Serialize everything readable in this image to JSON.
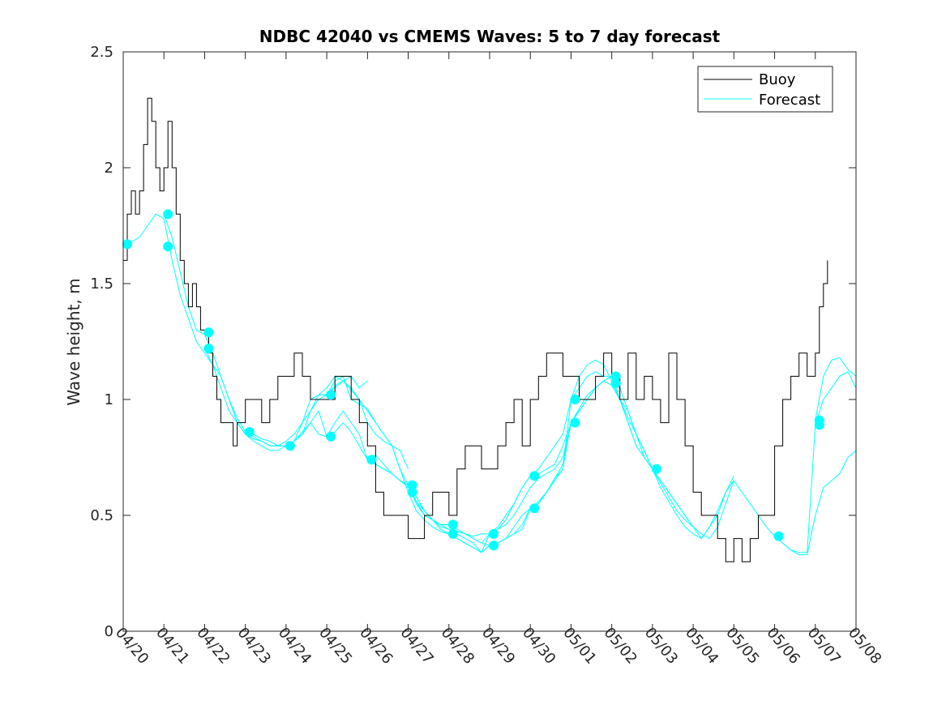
{
  "chart_data": {
    "type": "line",
    "title": "NDBC 42040 vs CMEMS Waves: 5 to 7 day forecast",
    "ylabel": "Wave height, m",
    "xlabel": "",
    "x_tick_labels": [
      "04/20",
      "04/21",
      "04/22",
      "04/23",
      "04/24",
      "04/25",
      "04/26",
      "04/27",
      "04/28",
      "04/29",
      "04/30",
      "05/01",
      "05/02",
      "05/03",
      "05/04",
      "05/05",
      "05/06",
      "05/07",
      "05/08"
    ],
    "xlim": [
      0,
      18
    ],
    "ylim": [
      0,
      2.5
    ],
    "y_ticks": [
      0,
      0.5,
      1,
      1.5,
      2,
      2.5
    ],
    "y_tick_labels": [
      "0",
      "0.5",
      "1",
      "1.5",
      "2",
      "2.5"
    ],
    "grid": false,
    "legend_position": "top-right",
    "legend": [
      "Buoy",
      "Forecast"
    ],
    "colors": {
      "buoy": "#000000",
      "forecast": "#00ffff"
    },
    "buoy_series": {
      "name": "Buoy",
      "x": [
        0,
        0.1,
        0.2,
        0.3,
        0.4,
        0.5,
        0.6,
        0.7,
        0.8,
        0.9,
        1.0,
        1.1,
        1.2,
        1.3,
        1.4,
        1.5,
        1.6,
        1.7,
        1.8,
        1.9,
        2.0,
        2.1,
        2.2,
        2.3,
        2.4,
        2.5,
        2.6,
        2.7,
        2.8,
        2.9,
        3.0,
        3.2,
        3.4,
        3.6,
        3.8,
        4.0,
        4.2,
        4.4,
        4.6,
        4.8,
        5.0,
        5.2,
        5.4,
        5.6,
        5.8,
        6.0,
        6.2,
        6.4,
        6.6,
        6.8,
        7.0,
        7.2,
        7.4,
        7.6,
        7.8,
        8.0,
        8.2,
        8.4,
        8.6,
        8.8,
        9.0,
        9.2,
        9.4,
        9.6,
        9.8,
        10.0,
        10.2,
        10.4,
        10.6,
        10.8,
        11.0,
        11.2,
        11.4,
        11.6,
        11.8,
        12.0,
        12.2,
        12.4,
        12.6,
        12.8,
        13.0,
        13.2,
        13.4,
        13.6,
        13.8,
        14.0,
        14.2,
        14.4,
        14.6,
        14.8,
        15.0,
        15.2,
        15.4,
        15.6,
        15.8,
        16.0,
        16.2,
        16.4,
        16.6,
        16.8,
        17.0,
        17.1,
        17.2,
        17.3
      ],
      "y": [
        1.6,
        1.8,
        1.9,
        1.8,
        1.9,
        2.1,
        2.3,
        2.2,
        2.0,
        1.9,
        2.0,
        2.2,
        2.0,
        1.8,
        1.6,
        1.5,
        1.4,
        1.5,
        1.4,
        1.3,
        1.3,
        1.2,
        1.1,
        1.0,
        0.9,
        0.9,
        0.9,
        0.8,
        0.9,
        0.9,
        1.0,
        1.0,
        0.9,
        1.0,
        1.1,
        1.1,
        1.2,
        1.1,
        1.0,
        1.0,
        1.0,
        1.1,
        1.1,
        1.0,
        0.9,
        0.8,
        0.6,
        0.5,
        0.5,
        0.5,
        0.4,
        0.4,
        0.5,
        0.6,
        0.6,
        0.5,
        0.7,
        0.8,
        0.8,
        0.7,
        0.7,
        0.8,
        0.9,
        1.0,
        0.8,
        1.0,
        1.1,
        1.2,
        1.2,
        1.1,
        1.1,
        1.0,
        1.0,
        1.1,
        1.2,
        1.1,
        1.0,
        1.2,
        1.0,
        1.1,
        1.0,
        0.9,
        1.2,
        1.0,
        0.8,
        0.6,
        0.5,
        0.5,
        0.4,
        0.3,
        0.4,
        0.3,
        0.4,
        0.5,
        0.5,
        0.8,
        1.0,
        1.1,
        1.2,
        1.1,
        1.2,
        1.4,
        1.5,
        1.6
      ]
    },
    "forecast_series": [
      {
        "name": "Forecast",
        "x": [
          0,
          0.2,
          0.4,
          0.6,
          0.8,
          1.0,
          1.2,
          1.4,
          1.6,
          1.8,
          2.0,
          2.2,
          2.4,
          2.6,
          2.8,
          3.0,
          3.2,
          3.4,
          3.6,
          3.8,
          4.0,
          4.2,
          4.4,
          4.6,
          4.8,
          5.0,
          5.2,
          5.4,
          5.6,
          5.8,
          6.0
        ],
        "y": [
          1.67,
          1.68,
          1.7,
          1.75,
          1.8,
          1.78,
          1.6,
          1.45,
          1.35,
          1.25,
          1.2,
          1.15,
          1.1,
          1.0,
          0.9,
          0.85,
          0.83,
          0.82,
          0.8,
          0.8,
          0.82,
          0.85,
          0.9,
          0.95,
          1.0,
          1.02,
          1.05,
          1.08,
          1.1,
          1.05,
          1.08
        ]
      },
      {
        "name": "Forecast",
        "x": [
          1.0,
          1.2,
          1.4,
          1.6,
          1.8,
          2.0,
          2.2,
          2.4,
          2.6,
          2.8,
          3.0,
          3.2,
          3.4,
          3.6,
          3.8,
          4.0,
          4.2,
          4.4,
          4.6,
          4.8,
          5.0,
          5.2,
          5.4,
          5.6,
          5.8,
          6.0,
          6.2,
          6.4,
          6.6,
          6.8,
          7.0
        ],
        "y": [
          1.8,
          1.7,
          1.55,
          1.4,
          1.3,
          1.28,
          1.2,
          1.1,
          1.0,
          0.92,
          0.86,
          0.85,
          0.83,
          0.82,
          0.8,
          0.8,
          0.82,
          0.85,
          0.95,
          1.02,
          1.05,
          1.1,
          1.08,
          1.04,
          1.0,
          0.9,
          0.85,
          0.82,
          0.8,
          0.78,
          0.7
        ]
      },
      {
        "name": "Forecast",
        "x": [
          2.0,
          2.2,
          2.4,
          2.6,
          2.8,
          3.0,
          3.2,
          3.4,
          3.6,
          3.8,
          4.0,
          4.2,
          4.4,
          4.6,
          4.8,
          5.0,
          5.2,
          5.4,
          5.6,
          5.8,
          6.0,
          6.2,
          6.4,
          6.6,
          6.8,
          7.0,
          7.2,
          7.4,
          7.6,
          7.8,
          8.0
        ],
        "y": [
          1.22,
          1.15,
          1.05,
          0.95,
          0.9,
          0.85,
          0.82,
          0.8,
          0.78,
          0.78,
          0.8,
          0.82,
          0.86,
          0.9,
          0.95,
          0.84,
          0.9,
          0.95,
          0.9,
          0.85,
          0.74,
          0.76,
          0.72,
          0.68,
          0.65,
          0.62,
          0.56,
          0.52,
          0.48,
          0.44,
          0.42
        ]
      },
      {
        "name": "Forecast",
        "x": [
          3.0,
          3.2,
          3.4,
          3.6,
          3.8,
          4.0,
          4.2,
          4.4,
          4.6,
          4.8,
          5.0,
          5.2,
          5.4,
          5.6,
          5.8,
          6.0,
          6.2,
          6.4,
          6.6,
          6.8,
          7.0,
          7.2,
          7.4,
          7.6,
          7.8,
          8.0,
          8.2,
          8.4,
          8.6,
          8.8,
          9.0
        ],
        "y": [
          0.86,
          0.84,
          0.82,
          0.8,
          0.8,
          0.8,
          0.82,
          0.85,
          0.9,
          0.85,
          0.84,
          0.86,
          0.9,
          0.86,
          0.8,
          0.74,
          0.72,
          0.7,
          0.68,
          0.65,
          0.63,
          0.58,
          0.52,
          0.48,
          0.46,
          0.44,
          0.43,
          0.42,
          0.41,
          0.42,
          0.42
        ]
      },
      {
        "name": "Forecast",
        "x": [
          4.0,
          4.2,
          4.4,
          4.6,
          4.8,
          5.0,
          5.2,
          5.4,
          5.6,
          5.8,
          6.0,
          6.2,
          6.4,
          6.6,
          6.8,
          7.0,
          7.2,
          7.4,
          7.6,
          7.8,
          8.0,
          8.2,
          8.4,
          8.6,
          8.8,
          9.0,
          9.2,
          9.4,
          9.6,
          9.8,
          10.0
        ],
        "y": [
          0.8,
          0.82,
          0.9,
          1.0,
          1.02,
          1.02,
          1.08,
          1.1,
          1.0,
          0.98,
          0.96,
          0.9,
          0.85,
          0.8,
          0.7,
          0.63,
          0.58,
          0.52,
          0.48,
          0.46,
          0.46,
          0.44,
          0.42,
          0.4,
          0.38,
          0.37,
          0.38,
          0.4,
          0.45,
          0.5,
          0.53
        ]
      },
      {
        "name": "Forecast",
        "x": [
          5.0,
          5.2,
          5.4,
          5.6,
          5.8,
          6.0,
          6.2,
          6.4,
          6.6,
          6.8,
          7.0,
          7.2,
          7.4,
          7.6,
          7.8,
          8.0,
          8.2,
          8.4,
          8.6,
          8.8,
          9.0,
          9.2,
          9.4,
          9.6,
          9.8,
          10.0,
          10.2,
          10.4,
          10.6,
          10.8,
          11.0
        ],
        "y": [
          1.02,
          1.06,
          1.08,
          1.05,
          1.0,
          0.95,
          0.9,
          0.85,
          0.8,
          0.7,
          0.6,
          0.52,
          0.48,
          0.45,
          0.43,
          0.42,
          0.4,
          0.38,
          0.36,
          0.34,
          0.42,
          0.44,
          0.46,
          0.5,
          0.56,
          0.62,
          0.66,
          0.68,
          0.7,
          0.75,
          0.9
        ]
      },
      {
        "name": "Forecast",
        "x": [
          6.0,
          6.2,
          6.4,
          6.6,
          6.8,
          7.0,
          7.2,
          7.4,
          7.6,
          7.8,
          8.0,
          8.2,
          8.4,
          8.6,
          8.8,
          9.0,
          9.2,
          9.4,
          9.6,
          9.8,
          10.0,
          10.2,
          10.4,
          10.6,
          10.8,
          11.0,
          11.2,
          11.4,
          11.6,
          11.8,
          12.0
        ],
        "y": [
          0.74,
          0.72,
          0.7,
          0.68,
          0.65,
          0.63,
          0.55,
          0.5,
          0.48,
          0.45,
          0.44,
          0.42,
          0.4,
          0.38,
          0.34,
          0.37,
          0.38,
          0.4,
          0.42,
          0.46,
          0.53,
          0.55,
          0.6,
          0.66,
          0.7,
          1.0,
          1.05,
          1.1,
          1.12,
          1.1,
          1.1
        ]
      },
      {
        "name": "Forecast",
        "x": [
          7.0,
          7.2,
          7.4,
          7.6,
          7.8,
          8.0,
          8.2,
          8.4,
          8.6,
          8.8,
          9.0,
          9.2,
          9.4,
          9.6,
          9.8,
          10.0,
          10.2,
          10.4,
          10.6,
          10.8,
          11.0,
          11.2,
          11.4,
          11.6,
          11.8,
          12.0,
          12.2,
          12.4,
          12.6,
          12.8,
          13.0
        ],
        "y": [
          0.63,
          0.56,
          0.5,
          0.48,
          0.46,
          0.46,
          0.44,
          0.42,
          0.4,
          0.38,
          0.42,
          0.44,
          0.48,
          0.55,
          0.62,
          0.67,
          0.68,
          0.7,
          0.72,
          0.8,
          0.9,
          0.95,
          1.0,
          1.05,
          1.08,
          1.06,
          1.0,
          0.95,
          0.85,
          0.75,
          0.7
        ]
      },
      {
        "name": "Forecast",
        "x": [
          8.0,
          8.2,
          8.4,
          8.6,
          8.8,
          9.0,
          9.2,
          9.4,
          9.6,
          9.8,
          10.0,
          10.2,
          10.4,
          10.6,
          10.8,
          11.0,
          11.2,
          11.4,
          11.6,
          11.8,
          12.0,
          12.2,
          12.4,
          12.6,
          12.8,
          13.0,
          13.2,
          13.4,
          13.6,
          13.8,
          14.0
        ],
        "y": [
          0.42,
          0.4,
          0.38,
          0.36,
          0.34,
          0.37,
          0.38,
          0.4,
          0.42,
          0.44,
          0.53,
          0.56,
          0.6,
          0.66,
          0.72,
          0.9,
          0.96,
          1.02,
          1.05,
          1.08,
          1.1,
          1.0,
          0.9,
          0.8,
          0.75,
          0.7,
          0.65,
          0.6,
          0.55,
          0.5,
          0.45
        ]
      },
      {
        "name": "Forecast",
        "x": [
          9.0,
          9.2,
          9.4,
          9.6,
          9.8,
          10.0,
          10.2,
          10.4,
          10.6,
          10.8,
          11.0,
          11.2,
          11.4,
          11.6,
          11.8,
          12.0,
          12.2,
          12.4,
          12.6,
          12.8,
          13.0,
          13.2,
          13.4,
          13.6,
          13.8,
          14.0,
          14.2,
          14.4,
          14.6,
          14.8,
          15.0
        ],
        "y": [
          0.42,
          0.45,
          0.5,
          0.55,
          0.62,
          0.67,
          0.7,
          0.75,
          0.8,
          0.85,
          1.0,
          1.1,
          1.15,
          1.17,
          1.15,
          1.08,
          1.0,
          0.9,
          0.8,
          0.75,
          0.7,
          0.65,
          0.6,
          0.55,
          0.5,
          0.45,
          0.4,
          0.45,
          0.5,
          0.6,
          0.67
        ]
      },
      {
        "name": "Forecast",
        "x": [
          10.0,
          10.2,
          10.4,
          10.6,
          10.8,
          11.0,
          11.2,
          11.4,
          11.6,
          11.8,
          12.0,
          12.2,
          12.4,
          12.6,
          12.8,
          13.0,
          13.2,
          13.4,
          13.6,
          13.8,
          14.0,
          14.2,
          14.4,
          14.6,
          14.8,
          15.0
        ],
        "y": [
          0.53,
          0.55,
          0.6,
          0.65,
          0.7,
          0.9,
          0.95,
          1.0,
          1.05,
          1.08,
          1.1,
          1.05,
          0.95,
          0.85,
          0.78,
          0.7,
          0.64,
          0.58,
          0.52,
          0.48,
          0.45,
          0.42,
          0.4,
          0.45,
          0.55,
          0.65
        ]
      },
      {
        "name": "Forecast",
        "x": [
          12.0,
          12.2,
          12.4,
          12.6,
          12.8,
          13.0,
          13.2,
          13.4,
          13.6,
          13.8,
          14.0,
          14.2,
          14.4,
          14.6,
          14.8,
          15.0,
          15.2,
          15.4,
          15.6,
          15.8,
          16.0,
          16.2,
          16.4,
          16.6,
          16.8,
          17.0,
          17.2,
          17.4,
          17.6,
          17.8,
          18.0
        ],
        "y": [
          1.08,
          1.0,
          0.92,
          0.85,
          0.78,
          0.7,
          0.62,
          0.56,
          0.5,
          0.45,
          0.42,
          0.4,
          0.45,
          0.52,
          0.6,
          0.65,
          0.6,
          0.55,
          0.5,
          0.45,
          0.41,
          0.38,
          0.35,
          0.33,
          0.33,
          0.5,
          0.62,
          0.65,
          0.68,
          0.75,
          0.78
        ]
      },
      {
        "name": "Forecast",
        "x": [
          16.0,
          16.2,
          16.4,
          16.6,
          16.8,
          17.0,
          17.2,
          17.4,
          17.6,
          17.8,
          18.0
        ],
        "y": [
          0.41,
          0.38,
          0.35,
          0.34,
          0.34,
          0.89,
          1.0,
          1.05,
          1.1,
          1.12,
          1.05
        ]
      },
      {
        "name": "Forecast",
        "x": [
          17.0,
          17.2,
          17.4,
          17.6,
          17.8,
          18.0
        ],
        "y": [
          0.91,
          1.1,
          1.17,
          1.18,
          1.13,
          1.1
        ]
      }
    ],
    "forecast_markers": {
      "x": [
        0.1,
        1.1,
        1.1,
        2.1,
        2.1,
        3.1,
        4.1,
        5.1,
        5.1,
        6.1,
        7.1,
        7.1,
        8.1,
        8.1,
        9.1,
        9.1,
        10.1,
        10.1,
        11.1,
        11.1,
        12.1,
        12.1,
        13.1,
        16.1,
        17.1,
        17.1
      ],
      "y": [
        1.67,
        1.8,
        1.66,
        1.29,
        1.22,
        0.86,
        0.8,
        1.02,
        0.84,
        0.74,
        0.63,
        0.6,
        0.46,
        0.42,
        0.42,
        0.37,
        0.67,
        0.53,
        1.0,
        0.9,
        1.1,
        1.07,
        0.7,
        0.41,
        0.91,
        0.89
      ]
    }
  }
}
